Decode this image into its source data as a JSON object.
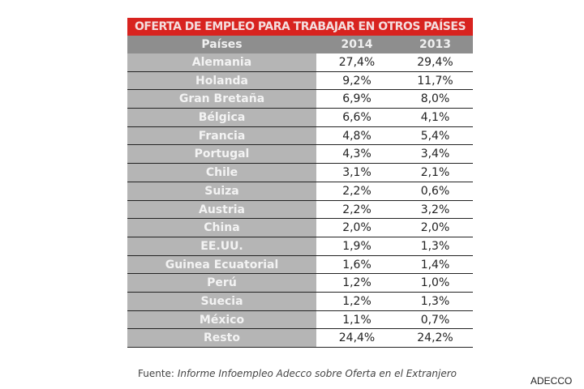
{
  "title": "OFERTA DE EMPLEO PARA TRABAJAR EN OTROS PAÍSES",
  "headers": [
    "Países",
    "2014",
    "2013"
  ],
  "rows": [
    [
      "Alemania",
      "27,4%",
      "29,4%"
    ],
    [
      "Holanda",
      "9,2%",
      "11,7%"
    ],
    [
      "Gran Bretaña",
      "6,9%",
      "8,0%"
    ],
    [
      "Bélgica",
      "6,6%",
      "4,1%"
    ],
    [
      "Francia",
      "4,8%",
      "5,4%"
    ],
    [
      "Portugal",
      "4,3%",
      "3,4%"
    ],
    [
      "Chile",
      "3,1%",
      "2,1%"
    ],
    [
      "Suiza",
      "2,2%",
      "0,6%"
    ],
    [
      "Austria",
      "2,2%",
      "3,2%"
    ],
    [
      "China",
      "2,0%",
      "2,0%"
    ],
    [
      "EE.UU.",
      "1,9%",
      "1,3%"
    ],
    [
      "Guinea Ecuatorial",
      "1,6%",
      "1,4%"
    ],
    [
      "Perú",
      "1,2%",
      "1,0%"
    ],
    [
      "Suecia",
      "1,2%",
      "1,3%"
    ],
    [
      "México",
      "1,1%",
      "0,7%"
    ],
    [
      "Resto",
      "24,4%",
      "24,2%"
    ]
  ],
  "source_label": "Fuente:",
  "source_text": "Informe Infoempleo Adecco sobre Oferta en el Extranjero",
  "credit": "ADECCO",
  "colors": {
    "title_bg": "#d8231f",
    "header_bg": "#8e8e8e",
    "country_bg": "#b5b5b5"
  }
}
